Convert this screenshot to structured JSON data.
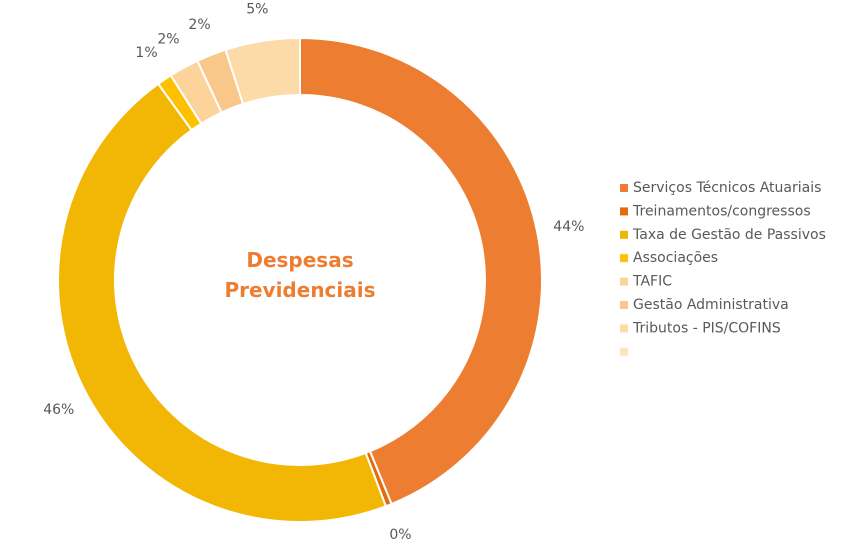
{
  "chart_data": {
    "type": "donut",
    "title": "Despesas Previdenciais",
    "categories": [
      "Serviços Técnicos Atuariais",
      "Treinamentos/congressos",
      "Taxa de Gestão de Passivos",
      "Associações",
      "TAFIC",
      "Gestão Administrativa",
      "Tributos -  PIS/COFINS",
      null
    ],
    "values": [
      44,
      0.4,
      46,
      1,
      2,
      2,
      5,
      null
    ],
    "value_labels": [
      "44%",
      "0%",
      "46%",
      "1%",
      "2%",
      "2%",
      "5%",
      null
    ],
    "colors": [
      "#ED7D31",
      "#E36C09",
      "#F2B705",
      "#FFC000",
      "#FCD39A",
      "#FAC78A",
      "#FDDBA8",
      "#FDE3C4"
    ],
    "legend": "right"
  }
}
